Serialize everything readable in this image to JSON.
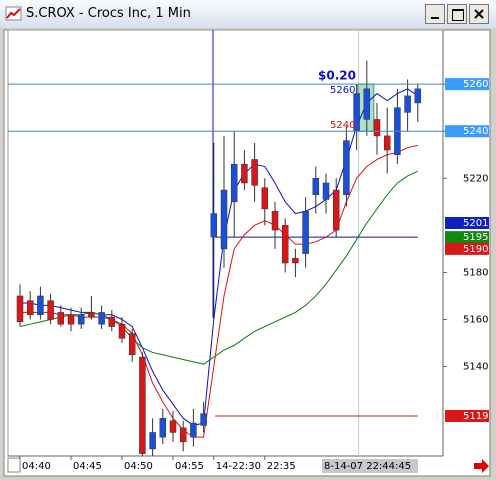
{
  "window": {
    "title": "S.CROX - Crocs Inc, 1 Min"
  },
  "chart_data": {
    "type": "candlestick",
    "categories": [
      "04:40",
      null,
      null,
      null,
      null,
      "04:45",
      null,
      null,
      null,
      null,
      "04:50",
      null,
      null,
      null,
      null,
      "04:55",
      null,
      null,
      null,
      "14-22:30",
      null,
      null,
      null,
      null,
      "22:35",
      null,
      null,
      null,
      null,
      null,
      null,
      null,
      null,
      null,
      null,
      null,
      null,
      null,
      null,
      null
    ],
    "candles": {
      "open": [
        5170,
        5168,
        5162,
        5168,
        5163,
        5162,
        5158,
        5163,
        5158,
        5161,
        5158,
        5154,
        5144,
        5105,
        5110,
        5117,
        5114,
        5110,
        5115,
        5195,
        5190,
        5210,
        5226,
        5228,
        5216,
        5206,
        5200,
        5186,
        5188,
        5213,
        5211,
        5215,
        5213,
        5240,
        5245,
        5245,
        5238,
        5230,
        5248,
        5252
      ],
      "high": [
        5175,
        5172,
        5174,
        5171,
        5166,
        5165,
        5165,
        5170,
        5166,
        5164,
        5161,
        5156,
        5146,
        5118,
        5122,
        5121,
        5117,
        5122,
        5125,
        5235,
        5238,
        5240,
        5232,
        5235,
        5220,
        5210,
        5203,
        5190,
        5212,
        5225,
        5222,
        5220,
        5242,
        5260,
        5270,
        5252,
        5250,
        5258,
        5262,
        5260
      ],
      "low": [
        5157,
        5160,
        5160,
        5158,
        5157,
        5155,
        5156,
        5160,
        5156,
        5155,
        5150,
        5142,
        5102,
        5102,
        5107,
        5108,
        5104,
        5106,
        5112,
        5160,
        5182,
        5195,
        5215,
        5210,
        5200,
        5190,
        5180,
        5178,
        5182,
        5205,
        5205,
        5195,
        5208,
        5232,
        5238,
        5230,
        5222,
        5226,
        5240,
        5244
      ],
      "close": [
        5159,
        5162,
        5170,
        5160,
        5158,
        5158,
        5162,
        5161,
        5163,
        5157,
        5152,
        5145,
        5103,
        5112,
        5118,
        5112,
        5108,
        5116,
        5120,
        5205,
        5215,
        5226,
        5218,
        5217,
        5207,
        5198,
        5184,
        5184,
        5206,
        5220,
        5218,
        5198,
        5236,
        5256,
        5258,
        5238,
        5232,
        5250,
        5255,
        5258
      ],
      "up_color": "#1c4fd8",
      "down_color": "#d81818"
    },
    "series": [
      {
        "color": "#0a10c8",
        "values": [
          5167,
          5167,
          5166,
          5166,
          5165,
          5164,
          5163,
          5163,
          5162,
          5162,
          5160,
          5157,
          5148,
          5138,
          5130,
          5124,
          5118,
          5115,
          5116,
          5160,
          5195,
          5215,
          5222,
          5226,
          5225,
          5218,
          5210,
          5205,
          5206,
          5208,
          5211,
          5215,
          5228,
          5242,
          5252,
          5256,
          5253,
          5256,
          5258,
          5255
        ]
      },
      {
        "color": "#e01010",
        "values": [
          5163,
          5163,
          5163,
          5163,
          5162,
          5162,
          5161,
          5161,
          5161,
          5160,
          5158,
          5154,
          5145,
          5133,
          5125,
          5118,
          5113,
          5110,
          5110,
          5140,
          5170,
          5190,
          5196,
          5200,
          5202,
          5200,
          5196,
          5192,
          5192,
          5193,
          5195,
          5198,
          5210,
          5220,
          5225,
          5228,
          5230,
          5231,
          5233,
          5234
        ]
      },
      {
        "color": "#0a7a0a",
        "values": [
          5157,
          5158,
          5159,
          5160,
          5161,
          5162,
          5162,
          5163,
          5162,
          5160,
          5157,
          5152,
          5148,
          5146,
          5145,
          5144,
          5143,
          5142,
          5141,
          5144,
          5147,
          5149,
          5152,
          5155,
          5157,
          5159,
          5161,
          5163,
          5166,
          5170,
          5175,
          5181,
          5187,
          5194,
          5201,
          5207,
          5213,
          5218,
          5221,
          5223
        ]
      }
    ],
    "hlines": {
      "values": [
        5260,
        5240
      ],
      "color": "#3c8cbc"
    },
    "session_lines": {
      "values": [
        5195,
        5119
      ],
      "colors": [
        "#1010b0",
        "#d01818"
      ]
    },
    "price_markers": {
      "values": [
        5260,
        5240,
        5201,
        5195,
        5190,
        5119
      ],
      "colors": [
        "#3a9cff",
        "#3a9cff",
        "#1020c0",
        "#108a10",
        "#d81818",
        "#d81818"
      ]
    },
    "annotations": [
      "$0.20",
      "5260",
      "5240"
    ],
    "cursor_label": "8-14-07 22:44:45",
    "ylim": [
      5102,
      5283
    ],
    "yticks": [
      5140,
      5160,
      5180,
      5220,
      5240,
      5260
    ]
  }
}
